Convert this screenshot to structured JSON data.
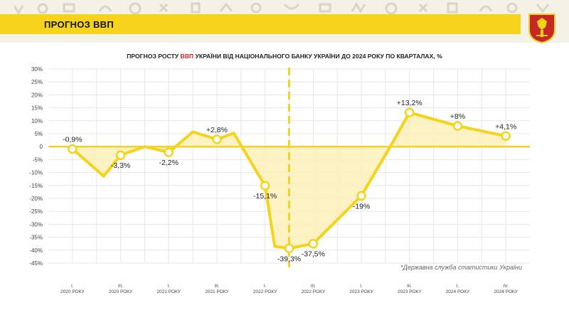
{
  "header": {
    "title": "ПРОГНОЗ ВВП"
  },
  "chart_data": {
    "type": "line",
    "title_parts": [
      "ПРОГНОЗ РОСТУ ",
      "ВВП",
      " УКРАЇНИ ВІД НАЦІОНАЛЬНОГО БАНКУ УКРАЇНИ ДО 2024 РОКУ ПО КВАРТАЛАХ, %"
    ],
    "title_highlight_color": "#c62828",
    "ylim": [
      -45,
      30
    ],
    "yticks": [
      30,
      25,
      20,
      15,
      10,
      5,
      0,
      -5,
      -10,
      -15,
      -20,
      -25,
      -30,
      -35,
      -40,
      -45
    ],
    "ytick_labels": [
      "30%",
      "25%",
      "20%",
      "15%",
      "10%",
      "5%",
      "0",
      "-5%",
      "-10%",
      "-15%",
      "-20%",
      "-25%",
      "-30%",
      "-35%",
      "-40%",
      "-45%"
    ],
    "x_labels": [
      {
        "q": "I.",
        "y": "2020 РОКУ",
        "x": 0
      },
      {
        "q": "III.",
        "y": "2020 РОКУ",
        "x": 2
      },
      {
        "q": "I.",
        "y": "2021 РОКУ",
        "x": 4
      },
      {
        "q": "III.",
        "y": "2021 РОКУ",
        "x": 6
      },
      {
        "q": "I.",
        "y": "2022 РОКУ",
        "x": 8
      },
      {
        "q": "III.",
        "y": "2022 РОКУ",
        "x": 10
      },
      {
        "q": "I.",
        "y": "2023 РОКУ",
        "x": 12
      },
      {
        "q": "III.",
        "y": "2023 РОКУ",
        "x": 14
      },
      {
        "q": "I.",
        "y": "2024 РОКУ",
        "x": 16
      },
      {
        "q": "IV.",
        "y": "2024 РОКУ",
        "x": 18
      }
    ],
    "series": [
      {
        "x": [
          0,
          1.3,
          2,
          3,
          4,
          5,
          6,
          6.7,
          8,
          8.4,
          9,
          10,
          12,
          13.2,
          14,
          16,
          18
        ],
        "values": [
          -0.9,
          -11.4,
          -3.3,
          0,
          -2.2,
          5.7,
          2.8,
          5.2,
          -15.1,
          -38.5,
          -39.3,
          -37.5,
          -19,
          0,
          13.2,
          8,
          4.1
        ]
      }
    ],
    "data_labels": [
      {
        "x": 0,
        "value": -0.9,
        "text": "-0,9%",
        "pos": "above"
      },
      {
        "x": 2,
        "value": -3.3,
        "text": "-3,3%",
        "pos": "below"
      },
      {
        "x": 4,
        "value": -2.2,
        "text": "-2,2%",
        "pos": "below"
      },
      {
        "x": 6,
        "value": 2.8,
        "text": "+2,8%",
        "pos": "above"
      },
      {
        "x": 8,
        "value": -15.1,
        "text": "-15,1%",
        "pos": "below"
      },
      {
        "x": 9,
        "value": -39.3,
        "text": "-39,3%",
        "pos": "below"
      },
      {
        "x": 10,
        "value": -37.5,
        "text": "-37,5%",
        "pos": "below"
      },
      {
        "x": 12,
        "value": -19,
        "text": "-19%",
        "pos": "below"
      },
      {
        "x": 14,
        "value": 13.2,
        "text": "+13,2%",
        "pos": "above"
      },
      {
        "x": 16,
        "value": 8,
        "text": "+8%",
        "pos": "above"
      },
      {
        "x": 18,
        "value": 4.1,
        "text": "+4,1%",
        "pos": "above"
      }
    ],
    "vline_x": 9,
    "vline_style": "dashed",
    "grid": true,
    "colors": {
      "line": "#f6d31b",
      "fill": "#fbf0b8",
      "grid": "#e6e6e6",
      "text": "#222222"
    }
  },
  "source_note": "*Державна служба статистики України",
  "colors": {
    "brand_yellow": "#f6d31b",
    "emblem_red": "#c62828"
  }
}
